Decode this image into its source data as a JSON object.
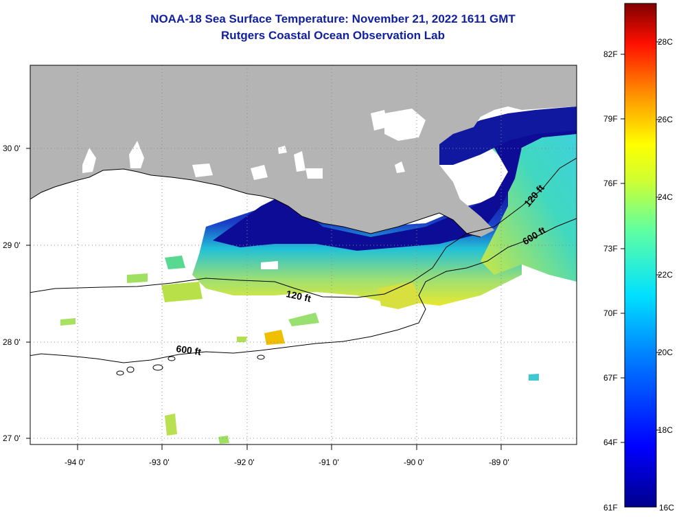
{
  "title": "NOAA-18 Sea Surface Temperature:  November 21, 2022 1611 GMT",
  "subtitle": "Rutgers Coastal Ocean Observation Lab",
  "map": {
    "lat_labels": [
      "30 0'",
      "29 0'",
      "28 0'",
      "27 0'"
    ],
    "lon_labels": [
      "-94 0'",
      "-93 0'",
      "-92 0'",
      "-91 0'",
      "-90 0'",
      "-89 0'"
    ],
    "contour_labels": [
      "120 ft",
      "600 ft",
      "120 ft",
      "600 ft"
    ],
    "colors": {
      "land": "#b4b4b4",
      "nodata": "#ffffff",
      "cold": "#00008c",
      "warm": "#ffe600"
    }
  },
  "colorbar": {
    "fahrenheit": [
      "82F",
      "79F",
      "76F",
      "73F",
      "70F",
      "67F",
      "64F",
      "61F"
    ],
    "celsius": [
      "28C",
      "26C",
      "24C",
      "22C",
      "20C",
      "18C",
      "16C"
    ],
    "range_c": [
      16,
      29
    ]
  }
}
